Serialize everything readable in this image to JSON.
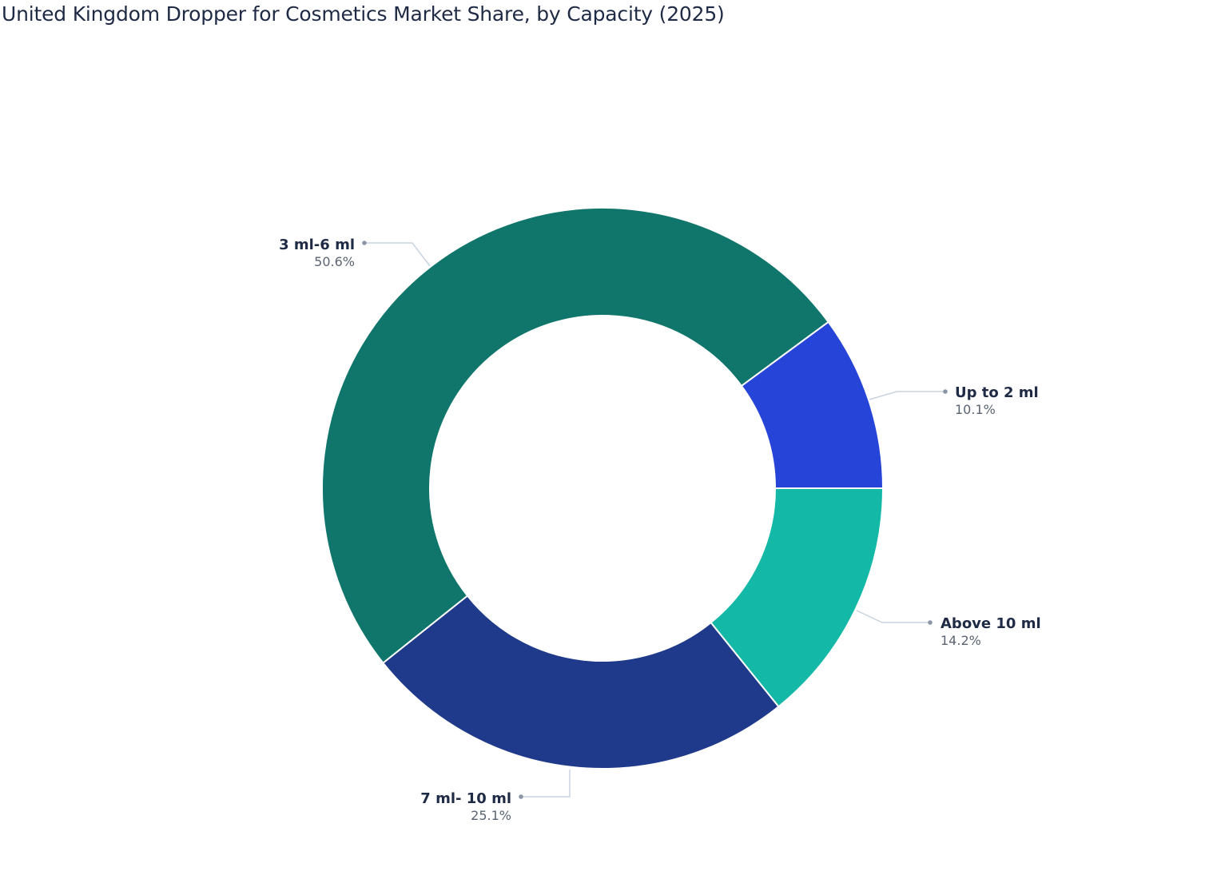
{
  "title": "United Kingdom Dropper for Cosmetics Market Share, by Capacity (2025)",
  "chart_data": {
    "type": "pie",
    "subtype": "donut",
    "title": "United Kingdom Dropper for Cosmetics Market Share, by Capacity (2025)",
    "categories": [
      "Up to 2 ml",
      "3 ml-6 ml",
      "7 ml- 10 ml",
      "Above 10 ml"
    ],
    "values": [
      10.1,
      50.6,
      25.1,
      14.2
    ],
    "labels": [
      "10.1%",
      "50.6%",
      "25.1%",
      "14.2%"
    ],
    "colors": [
      "#2744d9",
      "#10766c",
      "#1f3a8a",
      "#14b8a6"
    ],
    "hole_ratio": 0.615,
    "legend": "none (outside leader-line labels)"
  }
}
